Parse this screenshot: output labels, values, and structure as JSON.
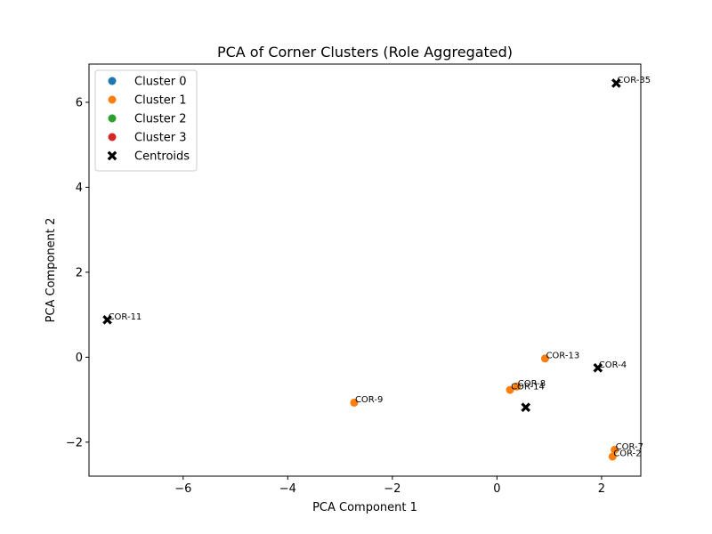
{
  "chart_data": {
    "type": "scatter",
    "title": "PCA of Corner Clusters (Role Aggregated)",
    "xlabel": "PCA Component 1",
    "ylabel": "PCA Component 2",
    "xlim": [
      -7.8,
      2.75
    ],
    "ylim": [
      -2.8,
      6.9
    ],
    "xticks": [
      {
        "value": -6,
        "label": "−6"
      },
      {
        "value": -4,
        "label": "−4"
      },
      {
        "value": -2,
        "label": "−2"
      },
      {
        "value": 0,
        "label": "0"
      },
      {
        "value": 2,
        "label": "2"
      }
    ],
    "yticks": [
      {
        "value": -2,
        "label": "−2"
      },
      {
        "value": 0,
        "label": "0"
      },
      {
        "value": 2,
        "label": "2"
      },
      {
        "value": 4,
        "label": "4"
      },
      {
        "value": 6,
        "label": "6"
      }
    ],
    "legend_position": "top-left",
    "series": [
      {
        "name": "Cluster 0",
        "color": "#1f77b4",
        "marker": "circle",
        "points": []
      },
      {
        "name": "Cluster 1",
        "color": "#ff7f0e",
        "marker": "circle",
        "points": [
          {
            "x": 0.92,
            "y": -0.03
          },
          {
            "x": 0.38,
            "y": -0.69
          },
          {
            "x": 0.25,
            "y": -0.77
          },
          {
            "x": -2.73,
            "y": -1.07
          },
          {
            "x": 2.25,
            "y": -2.18
          },
          {
            "x": 2.21,
            "y": -2.34
          }
        ]
      },
      {
        "name": "Cluster 2",
        "color": "#2ca02c",
        "marker": "circle",
        "points": []
      },
      {
        "name": "Cluster 3",
        "color": "#d62728",
        "marker": "circle",
        "points": []
      },
      {
        "name": "Centroids",
        "color": "#000000",
        "marker": "x",
        "points": [
          {
            "x": 2.28,
            "y": 6.45
          },
          {
            "x": -7.45,
            "y": 0.88
          },
          {
            "x": 1.93,
            "y": -0.25
          },
          {
            "x": 0.55,
            "y": -1.18
          }
        ]
      }
    ],
    "annotations": [
      {
        "text": "COR-35",
        "x": 2.28,
        "y": 6.45
      },
      {
        "text": "COR-11",
        "x": -7.45,
        "y": 0.88
      },
      {
        "text": "COR-13",
        "x": 0.92,
        "y": -0.03
      },
      {
        "text": "COR-4",
        "x": 1.93,
        "y": -0.25
      },
      {
        "text": "COR-8",
        "x": 0.38,
        "y": -0.69
      },
      {
        "text": "COR-14",
        "x": 0.25,
        "y": -0.77
      },
      {
        "text": "COR-9",
        "x": -2.73,
        "y": -1.07
      },
      {
        "text": "COR-7",
        "x": 2.25,
        "y": -2.18
      },
      {
        "text": "COR-2",
        "x": 2.21,
        "y": -2.34
      }
    ]
  }
}
